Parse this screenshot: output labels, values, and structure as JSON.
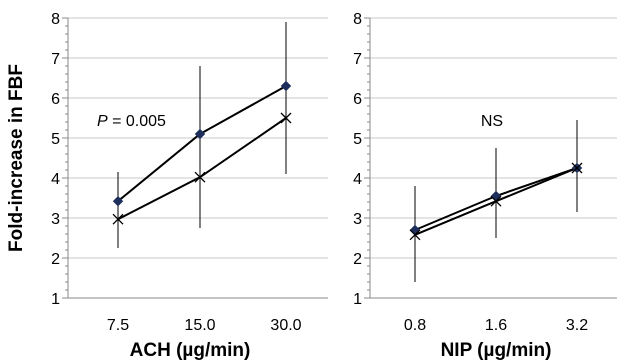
{
  "ylabel": "Fold-increase in FBF",
  "chart_data": [
    {
      "type": "line",
      "xlabel": "ACH (µg/min)",
      "categories": [
        "7.5",
        "15.0",
        "30.0"
      ],
      "ylim": [
        1,
        8
      ],
      "yticks": [
        "1",
        "2",
        "3",
        "4",
        "5",
        "6",
        "7",
        "8"
      ],
      "grid": true,
      "annotation": {
        "italic": "P",
        "text": " = 0.005"
      },
      "series": [
        {
          "marker": "diamond",
          "color": "#1f2f5c",
          "values": [
            3.42,
            5.1,
            6.3
          ],
          "err_low": [
            2.95,
            3.4,
            4.7
          ],
          "err_high": [
            4.15,
            6.8,
            7.9
          ]
        },
        {
          "marker": "x",
          "color": "#000000",
          "values": [
            2.97,
            4.02,
            5.5
          ],
          "err_low": [
            2.25,
            2.75,
            4.1
          ],
          "err_high": [
            3.2,
            4.55,
            6.25
          ]
        }
      ]
    },
    {
      "type": "line",
      "xlabel": "NIP (µg/min)",
      "categories": [
        "0.8",
        "1.6",
        "3.2"
      ],
      "ylim": [
        1,
        8
      ],
      "yticks": [
        "1",
        "2",
        "3",
        "4",
        "5",
        "6",
        "7",
        "8"
      ],
      "grid": true,
      "annotation": {
        "italic": "",
        "text": "NS"
      },
      "series": [
        {
          "marker": "diamond",
          "color": "#1f2f5c",
          "values": [
            2.7,
            3.55,
            4.25
          ],
          "err_low": [
            1.95,
            2.5,
            3.15
          ],
          "err_high": [
            3.8,
            4.75,
            4.5
          ]
        },
        {
          "marker": "x",
          "color": "#000000",
          "values": [
            2.58,
            3.42,
            4.25
          ],
          "err_low": [
            1.4,
            2.85,
            3.6
          ],
          "err_high": [
            2.75,
            3.55,
            5.45
          ]
        }
      ]
    }
  ]
}
